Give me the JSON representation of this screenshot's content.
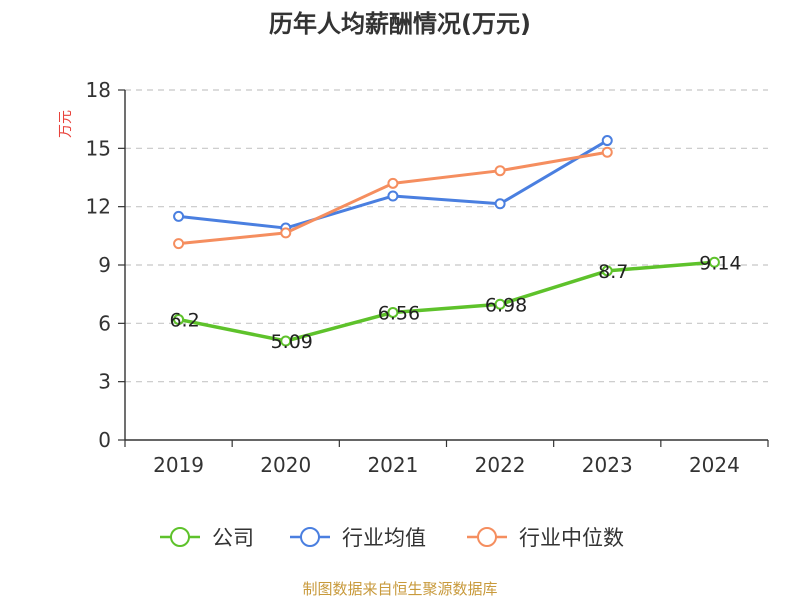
{
  "chart_data": {
    "type": "line",
    "title": "历年人均薪酬情况(万元)",
    "ylabel": "万元",
    "xlabel": "",
    "categories": [
      "2019",
      "2020",
      "2021",
      "2022",
      "2023",
      "2024"
    ],
    "ylim": [
      0,
      18
    ],
    "yticks": [
      0,
      3,
      6,
      9,
      12,
      15,
      18
    ],
    "grid": true,
    "legend_position": "bottom",
    "series": [
      {
        "name": "公司",
        "color": "#5ec22b",
        "values": [
          6.2,
          5.09,
          6.56,
          6.98,
          8.7,
          9.14
        ],
        "labels": [
          "6.2",
          "5.09",
          "6.56",
          "6.98",
          "8.7",
          "9.14"
        ]
      },
      {
        "name": "行业均值",
        "color": "#4a7fe0",
        "values": [
          11.5,
          10.9,
          12.55,
          12.15,
          15.4,
          null
        ]
      },
      {
        "name": "行业中位数",
        "color": "#f58e5f",
        "values": [
          10.1,
          10.65,
          13.2,
          13.85,
          14.8,
          null
        ]
      }
    ]
  },
  "source_text": "制图数据来自恒生聚源数据库"
}
